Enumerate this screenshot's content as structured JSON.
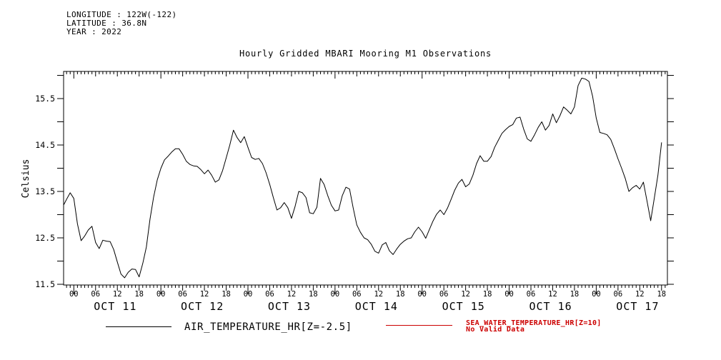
{
  "header": {
    "longitude_label": "LONGITUDE : 122W(-122)",
    "latitude_label": "LATITUDE : 36.8N",
    "year_label": "YEAR : 2022"
  },
  "title": "Hourly Gridded MBARI Mooring M1 Observations",
  "chart_data": {
    "type": "line",
    "title": "Hourly Gridded MBARI Mooring M1 Observations",
    "xlabel": "",
    "ylabel": "Celsius",
    "ylim": [
      11.5,
      16.0
    ],
    "y_tick_labels": [
      "11.5",
      "12.5",
      "13.5",
      "14.5",
      "15.5"
    ],
    "y_tick_values": [
      11.5,
      12.5,
      13.5,
      14.5,
      15.5
    ],
    "y_minor_step": 0.5,
    "grid": false,
    "legend_position": "bottom",
    "x_days": [
      "OCT 11",
      "OCT 12",
      "OCT 13",
      "OCT 14",
      "OCT 15",
      "OCT 16",
      "OCT 17"
    ],
    "hour_labels": [
      "00",
      "06",
      "12",
      "18"
    ],
    "series": [
      {
        "name": "AIR_TEMPERATURE_HR[Z=-2.5]",
        "color": "#000000",
        "start": "2022-10-10 21:00",
        "step_hours": 1,
        "values": [
          13.22,
          13.33,
          13.47,
          13.35,
          12.8,
          12.44,
          12.54,
          12.67,
          12.75,
          12.4,
          12.27,
          12.45,
          12.43,
          12.42,
          12.25,
          11.98,
          11.72,
          11.64,
          11.76,
          11.83,
          11.82,
          11.66,
          11.95,
          12.3,
          12.9,
          13.38,
          13.75,
          14.0,
          14.18,
          14.26,
          14.35,
          14.42,
          14.42,
          14.3,
          14.15,
          14.08,
          14.05,
          14.04,
          13.97,
          13.88,
          13.96,
          13.85,
          13.7,
          13.75,
          13.95,
          14.22,
          14.5,
          14.82,
          14.66,
          14.55,
          14.68,
          14.45,
          14.23,
          14.19,
          14.21,
          14.1,
          13.9,
          13.65,
          13.37,
          13.1,
          13.15,
          13.26,
          13.15,
          12.92,
          13.18,
          13.5,
          13.47,
          13.37,
          13.04,
          13.02,
          13.16,
          13.78,
          13.65,
          13.41,
          13.2,
          13.08,
          13.1,
          13.41,
          13.59,
          13.55,
          13.15,
          12.78,
          12.62,
          12.5,
          12.46,
          12.36,
          12.21,
          12.17,
          12.35,
          12.4,
          12.22,
          12.14,
          12.26,
          12.36,
          12.43,
          12.48,
          12.5,
          12.63,
          12.73,
          12.63,
          12.49,
          12.68,
          12.86,
          13.01,
          13.1,
          13.0,
          13.14,
          13.33,
          13.53,
          13.68,
          13.76,
          13.6,
          13.66,
          13.85,
          14.1,
          14.27,
          14.15,
          14.15,
          14.25,
          14.45,
          14.6,
          14.75,
          14.83,
          14.9,
          14.94,
          15.08,
          15.1,
          14.84,
          14.63,
          14.58,
          14.72,
          14.88,
          15.0,
          14.82,
          14.92,
          15.17,
          14.98,
          15.13,
          15.32,
          15.25,
          15.17,
          15.32,
          15.78,
          15.94,
          15.92,
          15.87,
          15.55,
          15.08,
          14.77,
          14.75,
          14.72,
          14.62,
          14.42,
          14.2,
          14.0,
          13.78,
          13.5,
          13.58,
          13.63,
          13.55,
          13.7,
          13.29,
          12.87,
          13.35,
          13.85,
          14.55
        ]
      },
      {
        "name": "SEA_WATER_TEMPERATURE_HR[Z=10]",
        "color": "#cc0000",
        "note": "No Valid Data",
        "values": []
      }
    ]
  },
  "colors": {
    "line": "#000000",
    "sea_water": "#cc0000",
    "background": "#ffffff"
  }
}
